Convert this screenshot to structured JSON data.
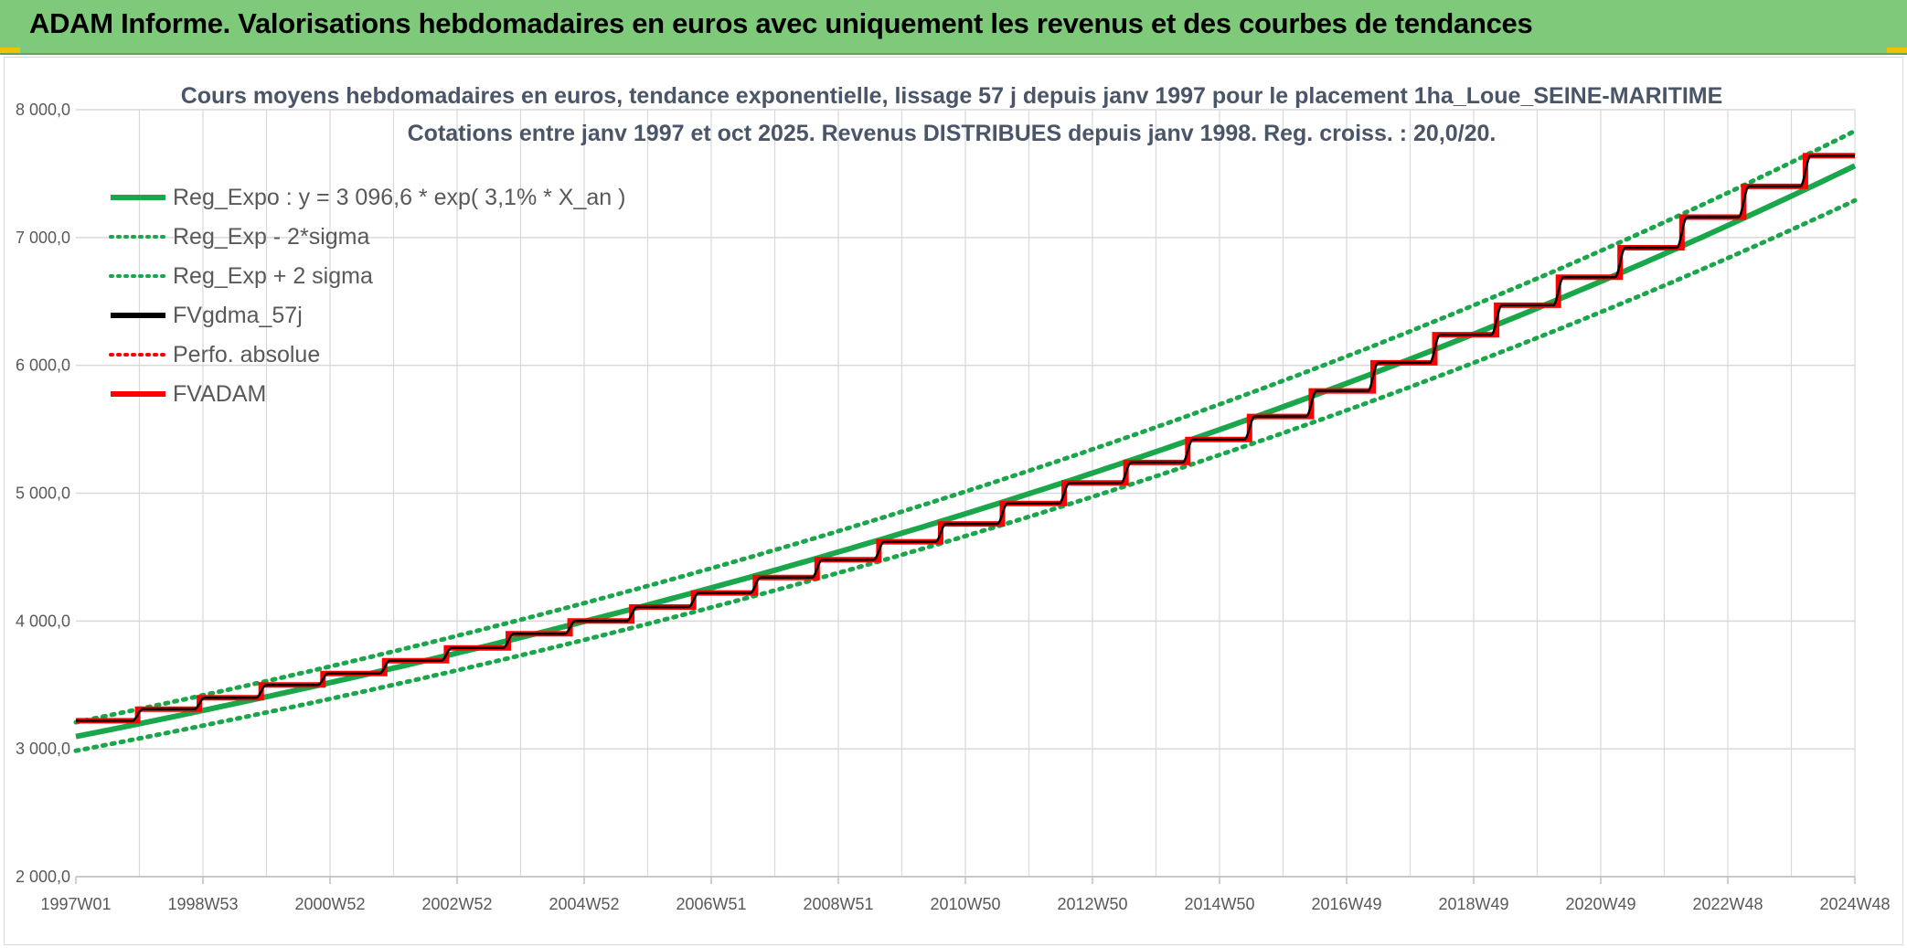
{
  "banner": {
    "title": "ADAM Informe. Valorisations hebdomadaires en euros avec uniquement les revenus et des courbes de tendances"
  },
  "colors": {
    "banner_bg": "#7fc97a",
    "green": "#1aa64a",
    "black": "#000000",
    "red": "#ff0000",
    "grid": "#d9d9d9"
  },
  "chart_data": {
    "type": "line",
    "title_line1": "Cours moyens hebdomadaires en euros, tendance exponentielle, lissage 57 j depuis janv 1997 pour le placement 1ha_Loue_SEINE-MARITIME",
    "title_line2": "Cotations entre janv 1997 et oct 2025. Revenus DISTRIBUES depuis janv 1998. Reg. croiss. : 20,0/20.",
    "ylim": [
      2000,
      8000
    ],
    "y_ticks": [
      "2 000,0",
      "3 000,0",
      "4 000,0",
      "5 000,0",
      "6 000,0",
      "7 000,0",
      "8 000,0"
    ],
    "y_tick_values": [
      2000,
      3000,
      4000,
      5000,
      6000,
      7000,
      8000
    ],
    "x_range": [
      1997.0,
      2025.8
    ],
    "x_tick_labels": [
      "1997W01",
      "1998W53",
      "2000W52",
      "2002W52",
      "2004W52",
      "2006W51",
      "2008W51",
      "2010W50",
      "2012W50",
      "2014W50",
      "2016W49",
      "2018W49",
      "2020W49",
      "2022W48",
      "2024W48"
    ],
    "grid": true,
    "legend_position": "top-left",
    "regression": {
      "a": 3096.6,
      "rate": 0.031,
      "sigma_factor": 0.036
    },
    "step_years": [
      1997,
      1998,
      1999,
      2000,
      2001,
      2002,
      2003,
      2004,
      2005,
      2006,
      2007,
      2008,
      2009,
      2010,
      2011,
      2012,
      2013,
      2014,
      2015,
      2016,
      2017,
      2018,
      2019,
      2020,
      2021,
      2022,
      2023,
      2024,
      2025
    ],
    "step_values": [
      3220,
      3310,
      3400,
      3500,
      3590,
      3690,
      3790,
      3900,
      4000,
      4110,
      4220,
      4340,
      4480,
      4620,
      4760,
      4920,
      5080,
      5240,
      5420,
      5600,
      5800,
      6020,
      6240,
      6470,
      6690,
      6920,
      7160,
      7400,
      7640
    ],
    "series": [
      {
        "name": "Reg_Expo : y = 3 096,6 * exp( 3,1% *  X_an )",
        "color": "#1aa64a",
        "style": "solid",
        "kind": "reg"
      },
      {
        "name": "Reg_Exp - 2*sigma",
        "color": "#1aa64a",
        "style": "dotted",
        "kind": "reg_minus"
      },
      {
        "name": "Reg_Exp + 2 sigma",
        "color": "#1aa64a",
        "style": "dotted",
        "kind": "reg_plus"
      },
      {
        "name": "FVgdma_57j",
        "color": "#000000",
        "style": "solid",
        "kind": "smooth"
      },
      {
        "name": "Perfo. absolue",
        "color": "#ff0000",
        "style": "dotted",
        "kind": "hidden"
      },
      {
        "name": "FVADAM",
        "color": "#ff0000",
        "style": "solid",
        "kind": "step"
      }
    ]
  }
}
